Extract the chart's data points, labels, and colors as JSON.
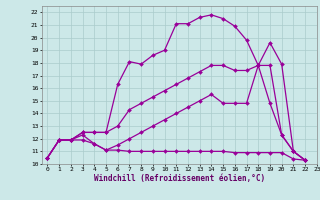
{
  "color": "#990099",
  "bg_color": "#cce8e8",
  "grid_color": "#aacccc",
  "xlim": [
    -0.5,
    23
  ],
  "ylim": [
    10,
    22.5
  ],
  "xticks": [
    0,
    1,
    2,
    3,
    4,
    5,
    6,
    7,
    8,
    9,
    10,
    11,
    12,
    13,
    14,
    15,
    16,
    17,
    18,
    19,
    20,
    21,
    22,
    23
  ],
  "yticks": [
    10,
    11,
    12,
    13,
    14,
    15,
    16,
    17,
    18,
    19,
    20,
    21,
    22
  ],
  "xlabel": "Windchill (Refroidissement éolien,°C)",
  "marker": "D",
  "markersize": 2,
  "linewidth": 0.9,
  "line1_x": [
    0,
    1,
    2,
    3,
    4,
    5,
    6,
    7,
    8,
    9,
    10,
    11,
    12,
    13,
    14,
    15,
    16,
    17,
    18,
    19,
    20,
    21,
    22
  ],
  "line1_y": [
    10.5,
    11.9,
    11.9,
    12.5,
    12.5,
    12.5,
    16.3,
    18.1,
    17.9,
    18.6,
    19.0,
    21.1,
    21.1,
    21.6,
    21.8,
    21.5,
    20.9,
    19.8,
    17.8,
    19.6,
    17.9,
    11.0,
    10.3
  ],
  "line2_x": [
    0,
    1,
    2,
    3,
    4,
    5,
    6,
    7,
    8,
    9,
    10,
    11,
    12,
    13,
    14,
    15,
    16,
    17,
    18,
    19,
    20,
    21,
    22
  ],
  "line2_y": [
    10.5,
    11.9,
    11.9,
    12.5,
    12.5,
    12.5,
    13.0,
    14.3,
    14.8,
    15.3,
    15.8,
    16.3,
    16.8,
    17.3,
    17.8,
    17.8,
    17.4,
    17.4,
    17.8,
    17.8,
    12.3,
    11.0,
    10.3
  ],
  "line3_x": [
    0,
    1,
    2,
    3,
    4,
    5,
    6,
    7,
    8,
    9,
    10,
    11,
    12,
    13,
    14,
    15,
    16,
    17,
    18,
    19,
    20,
    21,
    22
  ],
  "line3_y": [
    10.5,
    11.9,
    11.9,
    12.3,
    11.6,
    11.1,
    11.5,
    12.0,
    12.5,
    13.0,
    13.5,
    14.0,
    14.5,
    15.0,
    15.5,
    14.8,
    14.8,
    14.8,
    17.8,
    14.8,
    12.3,
    11.0,
    10.3
  ],
  "line4_x": [
    0,
    1,
    2,
    3,
    4,
    5,
    6,
    7,
    8,
    9,
    10,
    11,
    12,
    13,
    14,
    15,
    16,
    17,
    18,
    19,
    20,
    21,
    22
  ],
  "line4_y": [
    10.5,
    11.9,
    11.9,
    11.9,
    11.6,
    11.1,
    11.1,
    11.0,
    11.0,
    11.0,
    11.0,
    11.0,
    11.0,
    11.0,
    11.0,
    11.0,
    10.9,
    10.9,
    10.9,
    10.9,
    10.9,
    10.4,
    10.3
  ]
}
